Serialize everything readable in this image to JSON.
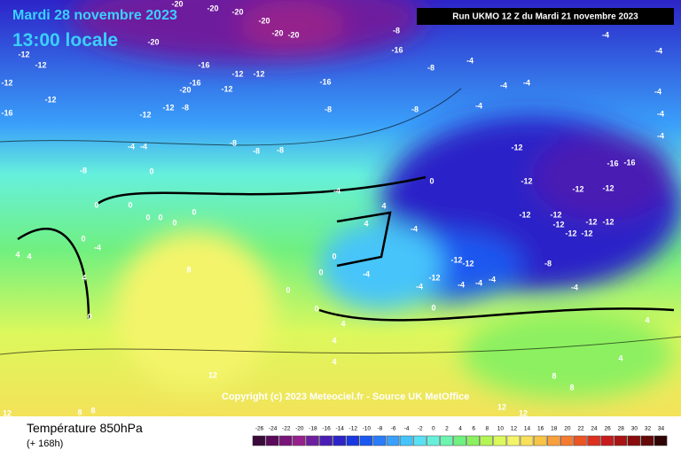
{
  "header": {
    "title": "Mardi 28 novembre 2023",
    "time": "13:00 locale",
    "run": "Run UKMO 12 Z du Mardi 21 novembre 2023"
  },
  "copyright": "Copyright (c) 2023 Meteociel.fr - Source UK MetOffice",
  "footer": {
    "title": "Température 850hPa",
    "subtitle": "(+ 168h)"
  },
  "legend": {
    "ticks": [
      -26,
      -24,
      -22,
      -20,
      -18,
      -16,
      -14,
      -12,
      -10,
      -8,
      -6,
      -4,
      -2,
      0,
      2,
      4,
      6,
      8,
      10,
      12,
      14,
      16,
      18,
      20,
      22,
      24,
      26,
      28,
      30,
      32,
      34
    ],
    "colors": [
      "#3a0a3a",
      "#5a0a5a",
      "#7a147a",
      "#96208c",
      "#6e1e9e",
      "#4a1eb4",
      "#2c24c8",
      "#1a38e0",
      "#1a58f0",
      "#2a7cf8",
      "#3aa0fa",
      "#46c4fa",
      "#5ae0f4",
      "#66f0dc",
      "#6cf4b0",
      "#70f080",
      "#8cf060",
      "#b4f454",
      "#dcf85c",
      "#f4f46a",
      "#f8e05a",
      "#f8c448",
      "#f8a03c",
      "#f47c30",
      "#ec5424",
      "#dc3020",
      "#c81c1c",
      "#a81414",
      "#880c0c",
      "#640808",
      "#300404"
    ]
  },
  "map_labels": [
    -20,
    -20,
    -20,
    -20,
    -20,
    -20,
    -20,
    -12,
    -12,
    -12,
    -16,
    -20,
    -16,
    -16,
    -8,
    -16,
    -8,
    -4,
    -4,
    -4,
    -12,
    -12,
    -12,
    -12,
    -16,
    -12,
    -12,
    -8,
    -8,
    -8,
    -4,
    -4,
    -4,
    -4,
    -4,
    -4,
    -4,
    -4,
    -8,
    -8,
    -8,
    -8,
    0,
    -4,
    -12,
    -16,
    -16,
    -12,
    -12,
    -12,
    -12,
    -12,
    -12,
    -12,
    -12,
    -12,
    -12,
    -12,
    -12,
    -12,
    -8,
    -4,
    -4,
    -4,
    -4,
    -4,
    -4,
    -4,
    0,
    0,
    0,
    0,
    0,
    0,
    0,
    -4,
    4,
    0,
    4,
    4,
    8,
    0,
    0,
    0,
    0,
    4,
    4,
    4,
    12,
    12,
    8,
    8,
    12,
    12,
    0,
    4,
    4,
    0,
    8,
    8,
    4,
    4
  ]
}
